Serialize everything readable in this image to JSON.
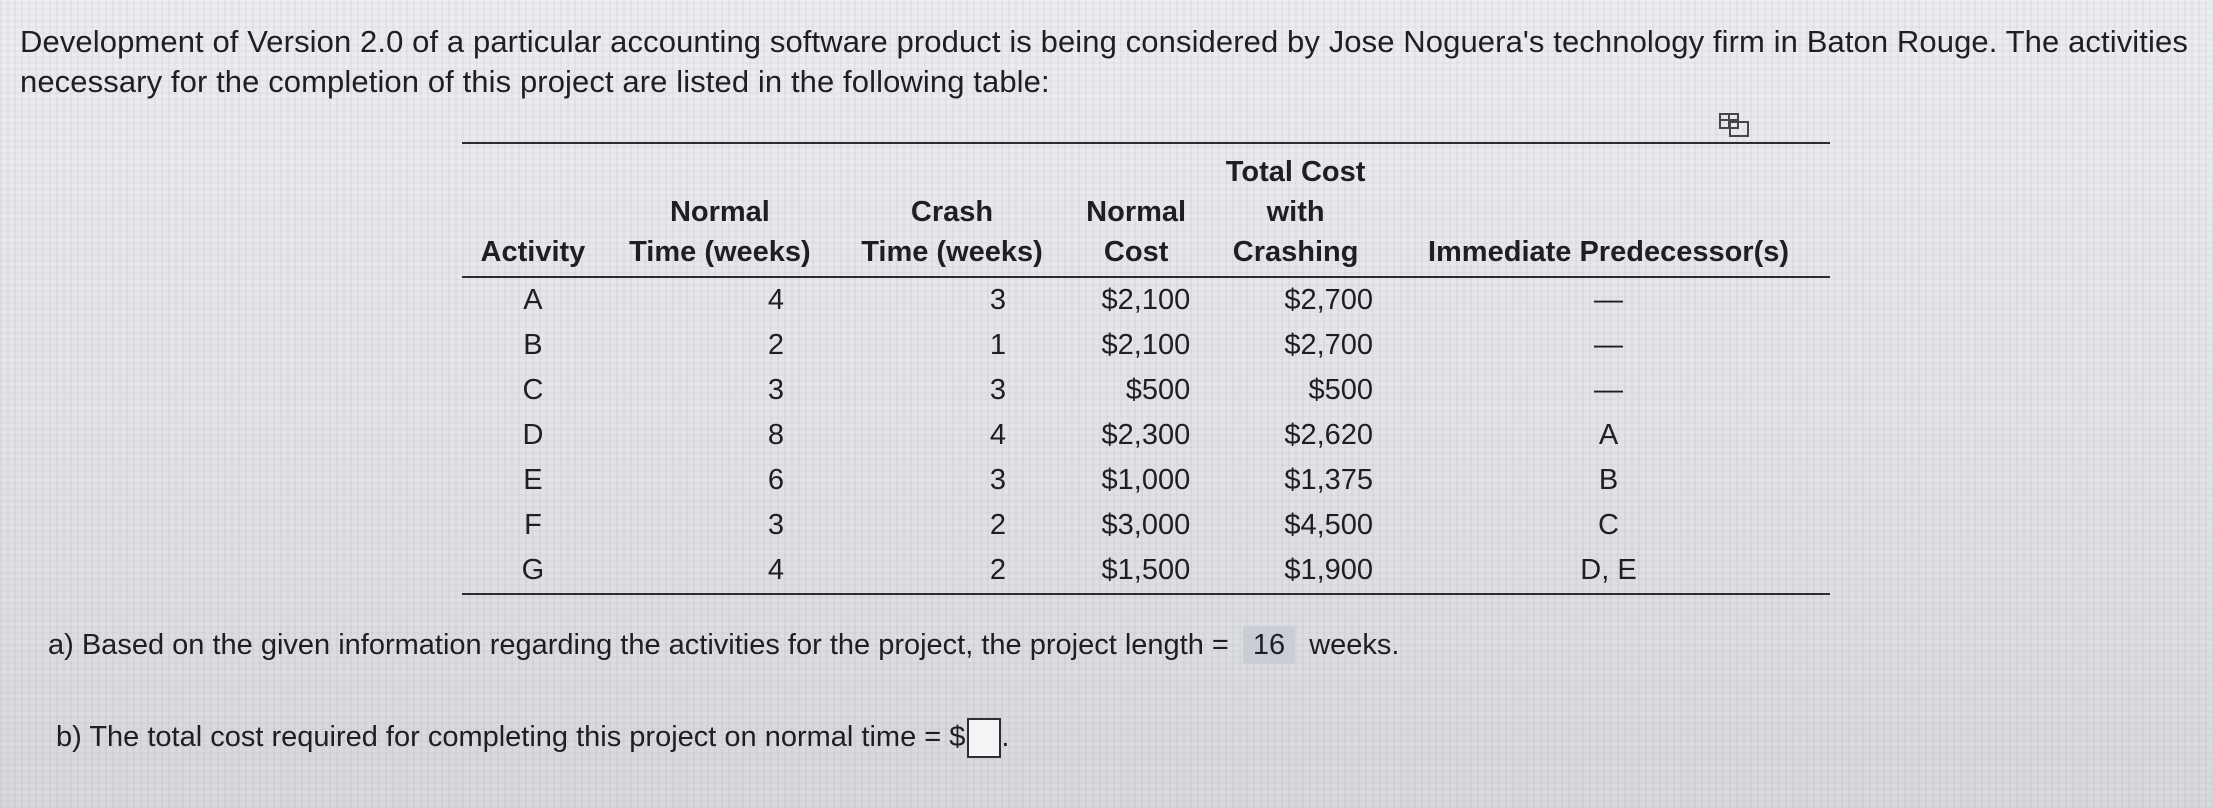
{
  "intro_text": "Development of Version 2.0 of a particular accounting software product is being considered by Jose Noguera's technology firm in Baton Rouge. The activities necessary for the completion of this project are listed in the following table:",
  "table": {
    "headers": {
      "activity": "Activity",
      "normal_time_1": "Normal",
      "normal_time_2": "Time (weeks)",
      "crash_time_1": "Crash",
      "crash_time_2": "Time (weeks)",
      "normal_cost_1": "Normal",
      "normal_cost_2": "Cost",
      "total_cost_1": "Total Cost",
      "total_cost_2": "with",
      "total_cost_3": "Crashing",
      "predecessors": "Immediate Predecessor(s)"
    },
    "rows": [
      {
        "activity": "A",
        "normal_time": "4",
        "crash_time": "3",
        "normal_cost": "$2,100",
        "crash_cost": "$2,700",
        "predecessors": "—"
      },
      {
        "activity": "B",
        "normal_time": "2",
        "crash_time": "1",
        "normal_cost": "$2,100",
        "crash_cost": "$2,700",
        "predecessors": "—"
      },
      {
        "activity": "C",
        "normal_time": "3",
        "crash_time": "3",
        "normal_cost": "$500",
        "crash_cost": "$500",
        "predecessors": "—"
      },
      {
        "activity": "D",
        "normal_time": "8",
        "crash_time": "4",
        "normal_cost": "$2,300",
        "crash_cost": "$2,620",
        "predecessors": "A"
      },
      {
        "activity": "E",
        "normal_time": "6",
        "crash_time": "3",
        "normal_cost": "$1,000",
        "crash_cost": "$1,375",
        "predecessors": "B"
      },
      {
        "activity": "F",
        "normal_time": "3",
        "crash_time": "2",
        "normal_cost": "$3,000",
        "crash_cost": "$4,500",
        "predecessors": "C"
      },
      {
        "activity": "G",
        "normal_time": "4",
        "crash_time": "2",
        "normal_cost": "$1,500",
        "crash_cost": "$1,900",
        "predecessors": "D, E"
      }
    ]
  },
  "question_a": {
    "prefix": "a) Based on the given information regarding the activities for the project, the project length =",
    "answer": "16",
    "suffix": "weeks."
  },
  "question_b": {
    "prefix": "b) The total cost required for completing this project on normal time = $",
    "value": ""
  },
  "icons": {
    "table_icon": "copy-table-icon"
  }
}
